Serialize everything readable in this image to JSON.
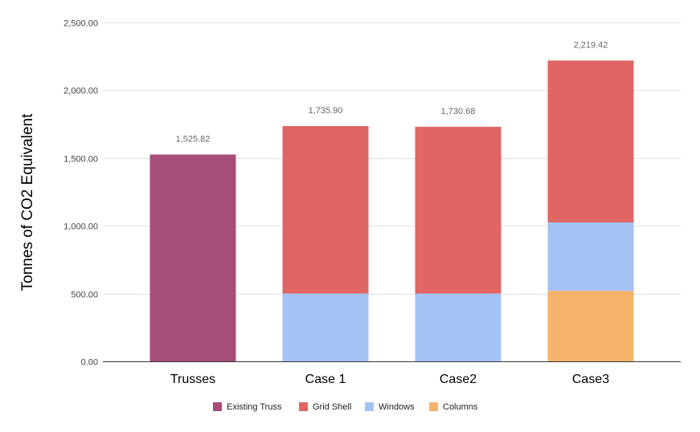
{
  "chart_data": {
    "type": "bar",
    "stacked": true,
    "ylabel": "Tonnes of CO2 Equivalent",
    "xlabel": "",
    "ylim": [
      0,
      2500
    ],
    "yticks": [
      0,
      500,
      1000,
      1500,
      2000,
      2500
    ],
    "ytick_labels": [
      "0.00",
      "500.00",
      "1,000.00",
      "1,500.00",
      "2,000.00",
      "2,500.00"
    ],
    "categories": [
      "Trusses",
      "Case 1",
      "Case2",
      "Case3"
    ],
    "series": [
      {
        "name": "Columns",
        "color": "#f6b26b",
        "values": [
          0,
          0,
          0,
          520
        ]
      },
      {
        "name": "Windows",
        "color": "#a4c2f4",
        "values": [
          0,
          500,
          500,
          505
        ]
      },
      {
        "name": "Grid Shell",
        "color": "#e06666",
        "values": [
          0,
          1235.9,
          1230.68,
          1194.42
        ]
      },
      {
        "name": "Existing Truss",
        "color": "#a64d79",
        "values": [
          1525.82,
          0,
          0,
          0
        ]
      }
    ],
    "totals": [
      "1,525.82",
      "1,735.90",
      "1,730.68",
      "2,219.42"
    ],
    "legend_order": [
      "Existing Truss",
      "Grid Shell",
      "Windows",
      "Columns"
    ],
    "legend_position": "bottom",
    "grid": true
  }
}
